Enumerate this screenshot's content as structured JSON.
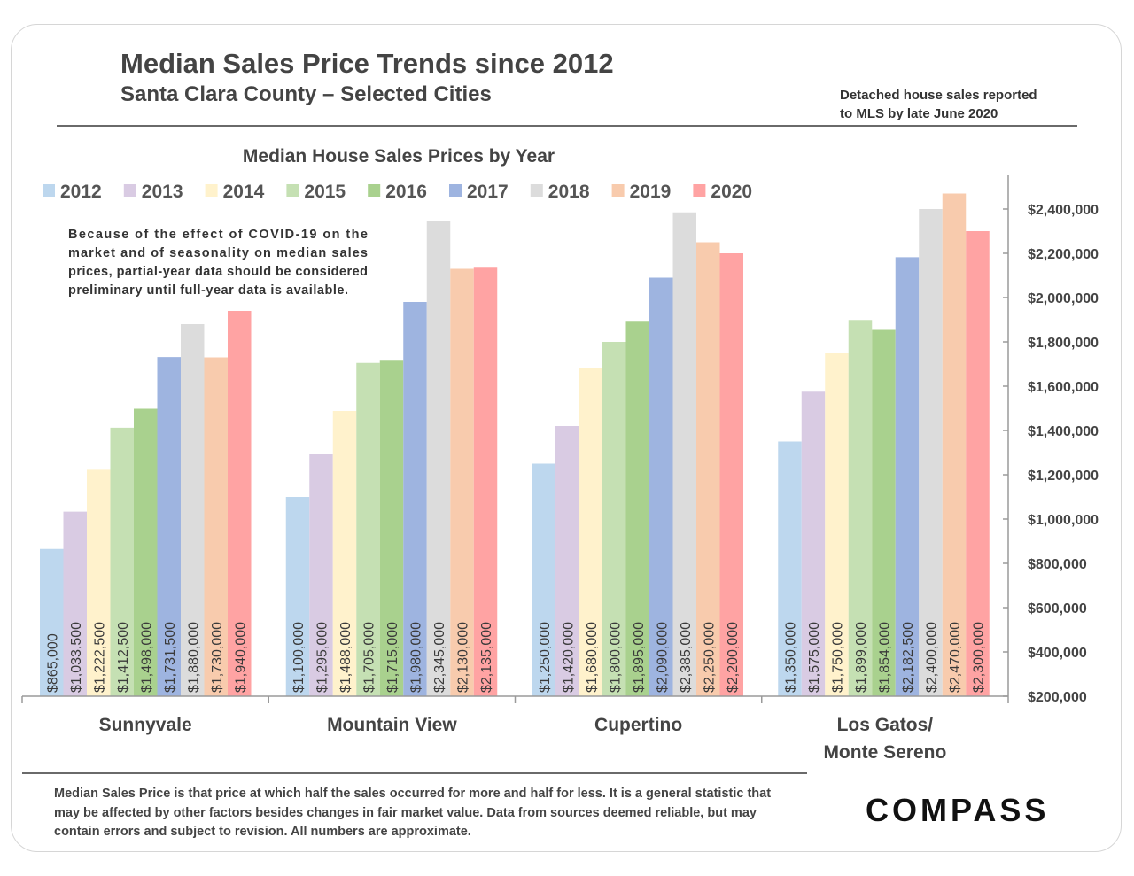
{
  "header": {
    "title": "Median Sales Price Trends since 2012",
    "subtitle": "Santa Clara County – Selected Cities",
    "note_line1": "Detached house sales reported",
    "note_line2": "to MLS by late June 2020"
  },
  "footer": {
    "disclaimer": "Median Sales Price is that price at which half the sales occurred for more and half for less. It is a general statistic that may be affected by other factors besides changes in fair market value. Data from sources deemed reliable, but may contain errors and subject to revision.  All numbers are approximate.",
    "logo": "COMPASS"
  },
  "chart_data": {
    "type": "bar",
    "title": "Median House Sales Prices by Year",
    "annotation_lines": [
      "Because of the effect of COVID-19 on the",
      "market and of seasonality on median sales",
      "prices, partial-year data should be considered",
      "preliminary until full-year data is available."
    ],
    "categories": [
      [
        "Sunnyvale"
      ],
      [
        "Mountain View"
      ],
      [
        "Cupertino"
      ],
      [
        "Los Gatos/",
        "Monte Sereno"
      ]
    ],
    "series": [
      {
        "name": "2012",
        "color": "#bdd7ee",
        "values": [
          865000,
          1100000,
          1250000,
          1350000
        ],
        "labels": [
          "$865,000",
          "$1,100,000",
          "$1,250,000",
          "$1,350,000"
        ]
      },
      {
        "name": "2013",
        "color": "#d9cbe3",
        "values": [
          1033500,
          1295000,
          1420000,
          1575000
        ],
        "labels": [
          "$1,033,500",
          "$1,295,000",
          "$1,420,000",
          "$1,575,000"
        ]
      },
      {
        "name": "2014",
        "color": "#fff2cc",
        "values": [
          1222500,
          1488000,
          1680000,
          1750000
        ],
        "labels": [
          "$1,222,500",
          "$1,488,000",
          "$1,680,000",
          "$1,750,000"
        ]
      },
      {
        "name": "2015",
        "color": "#c5e0b3",
        "values": [
          1412500,
          1705000,
          1800000,
          1899000
        ],
        "labels": [
          "$1,412,500",
          "$1,705,000",
          "$1,800,000",
          "$1,899,000"
        ]
      },
      {
        "name": "2016",
        "color": "#a9d18e",
        "values": [
          1498000,
          1715000,
          1895000,
          1854000
        ],
        "labels": [
          "$1,498,000",
          "$1,715,000",
          "$1,895,000",
          "$1,854,000"
        ]
      },
      {
        "name": "2017",
        "color": "#9eb4e0",
        "values": [
          1731500,
          1980000,
          2090000,
          2182500
        ],
        "labels": [
          "$1,731,500",
          "$1,980,000",
          "$2,090,000",
          "$2,182,500"
        ]
      },
      {
        "name": "2018",
        "color": "#dcdcdc",
        "values": [
          1880000,
          2345000,
          2385000,
          2400000
        ],
        "labels": [
          "$1,880,000",
          "$2,345,000",
          "$2,385,000",
          "$2,400,000"
        ]
      },
      {
        "name": "2019",
        "color": "#f8cbad",
        "values": [
          1730000,
          2130000,
          2250000,
          2470000
        ],
        "labels": [
          "$1,730,000",
          "$2,130,000",
          "$2,250,000",
          "$2,470,000"
        ]
      },
      {
        "name": "2020",
        "color": "#ffa3a3",
        "values": [
          1940000,
          2135000,
          2200000,
          2300000
        ],
        "labels": [
          "$1,940,000",
          "$2,135,000",
          "$2,200,000",
          "$2,300,000"
        ]
      }
    ],
    "y_ticks": [
      200000,
      400000,
      600000,
      800000,
      1000000,
      1200000,
      1400000,
      1600000,
      1800000,
      2000000,
      2200000,
      2400000
    ],
    "y_tick_labels": [
      "$200,000",
      "$400,000",
      "$600,000",
      "$800,000",
      "$1,000,000",
      "$1,200,000",
      "$1,400,000",
      "$1,600,000",
      "$1,800,000",
      "$2,000,000",
      "$2,200,000",
      "$2,400,000"
    ],
    "ylim": [
      200000,
      2550000
    ],
    "xlabel": "",
    "ylabel": "",
    "legend": "top-left",
    "grid": false
  }
}
